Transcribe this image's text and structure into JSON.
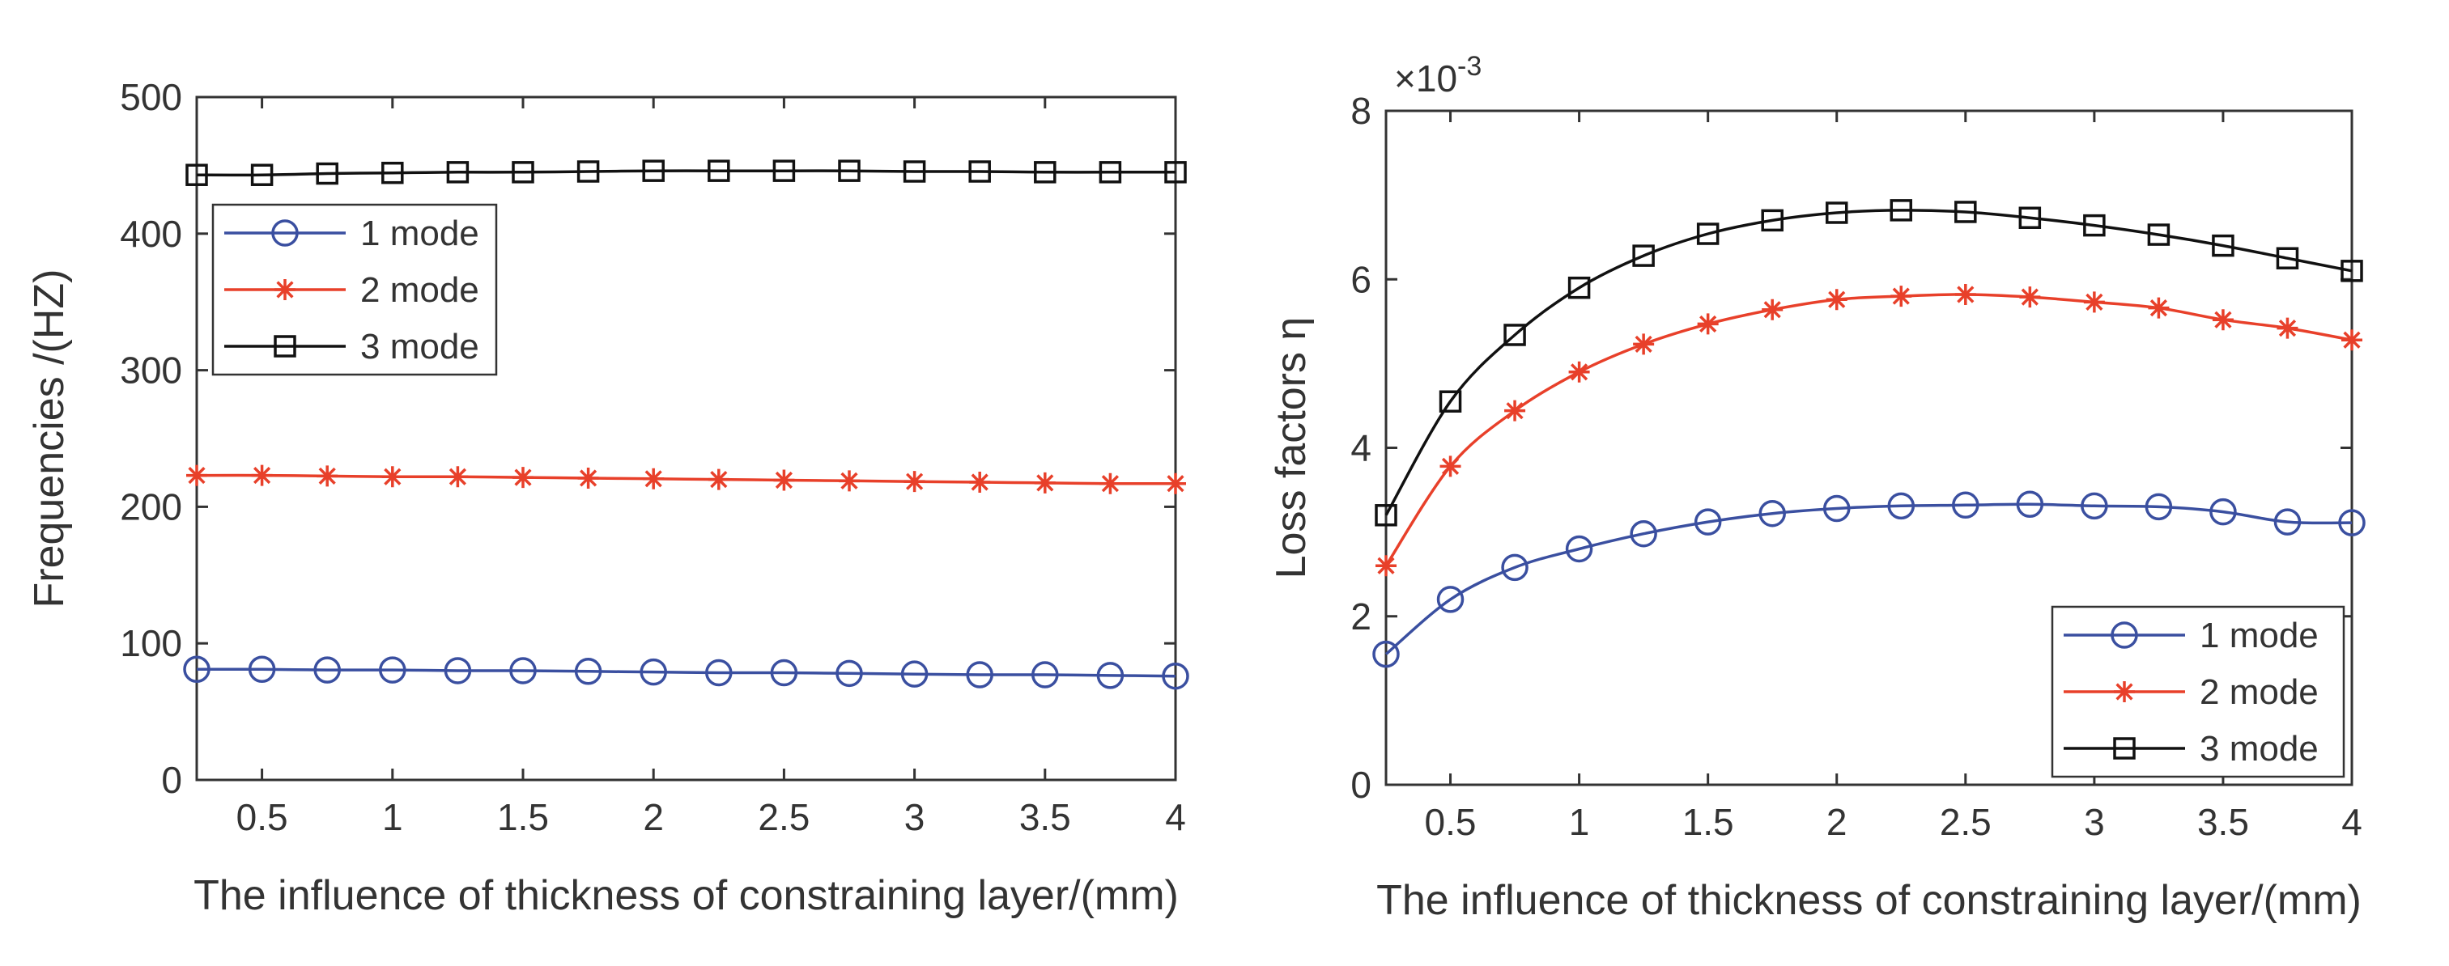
{
  "chart_data": [
    {
      "type": "line",
      "title": "",
      "xlabel": "The influence of thickness of constraining layer/(mm)",
      "ylabel": "Frequencies /(HZ)",
      "xlim": [
        0.25,
        4
      ],
      "ylim": [
        0,
        500
      ],
      "xticks": [
        0.5,
        1,
        1.5,
        2,
        2.5,
        3,
        3.5,
        4
      ],
      "xtick_labels": [
        "0.5",
        "1",
        "1.5",
        "2",
        "2.5",
        "3",
        "3.5",
        "4"
      ],
      "yticks": [
        0,
        100,
        200,
        300,
        400,
        500
      ],
      "ytick_labels": [
        "0",
        "100",
        "200",
        "300",
        "400",
        "500"
      ],
      "exponent_label": "",
      "legend_position": "upper-left",
      "x": [
        0.25,
        0.5,
        0.75,
        1,
        1.25,
        1.5,
        1.75,
        2,
        2.25,
        2.5,
        2.75,
        3,
        3.25,
        3.5,
        3.75,
        4
      ],
      "series": [
        {
          "name": "1 mode",
          "color": "#3a4fa0",
          "marker": "circle",
          "values": [
            81,
            81,
            80.5,
            80.5,
            80,
            80,
            79.5,
            79,
            78.5,
            78.5,
            78,
            77.5,
            77,
            77,
            76.5,
            76
          ]
        },
        {
          "name": "2 mode",
          "color": "#e8402a",
          "marker": "star",
          "values": [
            223,
            223,
            222.5,
            222,
            222,
            221.5,
            221,
            220.5,
            220,
            219.5,
            219,
            218.5,
            218,
            217.5,
            217,
            217
          ]
        },
        {
          "name": "3 mode",
          "color": "#111111",
          "marker": "square",
          "values": [
            443,
            443,
            444,
            444.5,
            445,
            445,
            445.5,
            446,
            446,
            446,
            446,
            445.5,
            445.5,
            445,
            445,
            445
          ]
        }
      ]
    },
    {
      "type": "line",
      "title": "",
      "xlabel": "The influence of thickness of constraining layer/(mm)",
      "ylabel": "Loss factors η",
      "xlim": [
        0.25,
        4
      ],
      "ylim": [
        0,
        8
      ],
      "xticks": [
        0.5,
        1,
        1.5,
        2,
        2.5,
        3,
        3.5,
        4
      ],
      "xtick_labels": [
        "0.5",
        "1",
        "1.5",
        "2",
        "2.5",
        "3",
        "3.5",
        "4"
      ],
      "yticks": [
        0,
        2,
        4,
        6,
        8
      ],
      "ytick_labels": [
        "0",
        "2",
        "4",
        "6",
        "8"
      ],
      "exponent_label": "×10-3",
      "legend_position": "lower-right",
      "x": [
        0.25,
        0.5,
        0.75,
        1,
        1.25,
        1.5,
        1.75,
        2,
        2.25,
        2.5,
        2.75,
        3,
        3.25,
        3.5,
        3.75,
        4
      ],
      "series": [
        {
          "name": "1 mode",
          "color": "#3a4fa0",
          "marker": "circle",
          "values": [
            1.55,
            2.2,
            2.58,
            2.8,
            2.98,
            3.12,
            3.22,
            3.28,
            3.31,
            3.32,
            3.33,
            3.31,
            3.3,
            3.24,
            3.12,
            3.11
          ]
        },
        {
          "name": "2 mode",
          "color": "#e8402a",
          "marker": "star",
          "values": [
            2.6,
            3.78,
            4.44,
            4.9,
            5.23,
            5.47,
            5.64,
            5.76,
            5.8,
            5.82,
            5.79,
            5.73,
            5.66,
            5.52,
            5.42,
            5.28
          ]
        },
        {
          "name": "3 mode",
          "color": "#111111",
          "marker": "square",
          "values": [
            3.2,
            4.55,
            5.34,
            5.9,
            6.28,
            6.54,
            6.7,
            6.79,
            6.82,
            6.8,
            6.73,
            6.64,
            6.53,
            6.4,
            6.25,
            6.1
          ]
        }
      ]
    }
  ]
}
